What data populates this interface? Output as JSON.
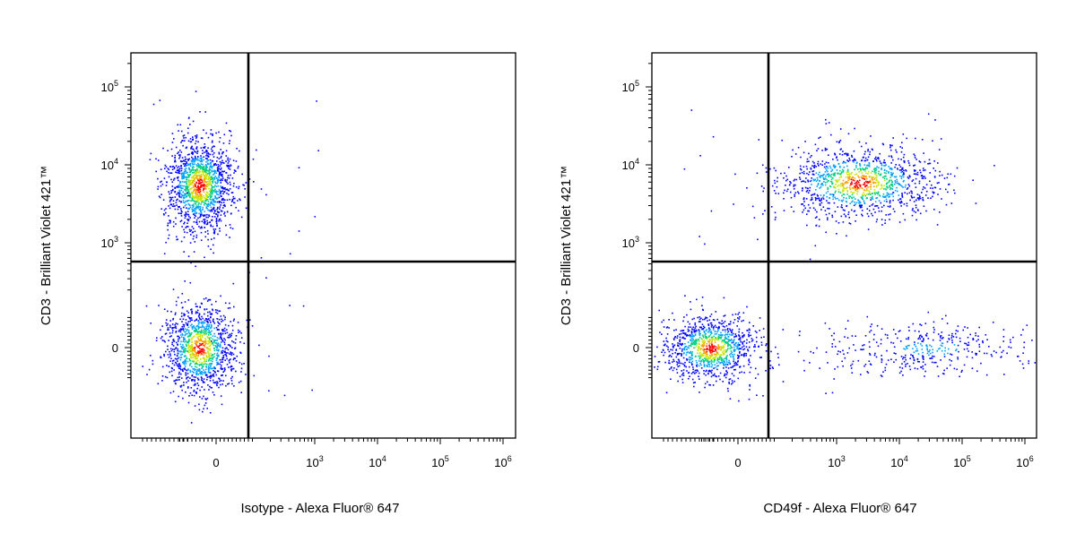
{
  "chart_data": [
    {
      "type": "scatter",
      "style": "density-colored flow cytometry dot plot",
      "xlabel": "Isotype - Alexa Fluor® 647",
      "ylabel": "CD3 - Brilliant Violet 421™",
      "x_scale": "biexponential",
      "y_scale": "biexponential",
      "xlim": [
        -200,
        1000000
      ],
      "ylim": [
        -200,
        250000
      ],
      "x_ticks": [
        {
          "value": 0,
          "base": "0",
          "exp": ""
        },
        {
          "value": 1000,
          "base": "10",
          "exp": "3"
        },
        {
          "value": 10000,
          "base": "10",
          "exp": "4"
        },
        {
          "value": 100000,
          "base": "10",
          "exp": "5"
        },
        {
          "value": 1000000,
          "base": "10",
          "exp": "6"
        }
      ],
      "y_ticks": [
        {
          "value": 0,
          "base": "0",
          "exp": ""
        },
        {
          "value": 1000,
          "base": "10",
          "exp": "3"
        },
        {
          "value": 10000,
          "base": "10",
          "exp": "4"
        },
        {
          "value": 100000,
          "base": "10",
          "exp": "5"
        }
      ],
      "quadrant_gate": {
        "x": 300,
        "y": 600
      },
      "populations": [
        {
          "x_center": -30,
          "y_center": 5500,
          "relative_size": 0.55
        },
        {
          "x_center": -30,
          "y_center": 0,
          "relative_size": 0.45
        }
      ],
      "density_colors": [
        "#0000ff",
        "#00a0ff",
        "#00d080",
        "#c8e600",
        "#ffa000",
        "#ff0000"
      ]
    },
    {
      "type": "scatter",
      "style": "density-colored flow cytometry dot plot",
      "xlabel": "CD49f - Alexa Fluor® 647",
      "ylabel": "CD3 - Brilliant Violet 421™",
      "x_scale": "biexponential",
      "y_scale": "biexponential",
      "xlim": [
        -200,
        1000000
      ],
      "ylim": [
        -200,
        250000
      ],
      "x_ticks": [
        {
          "value": 0,
          "base": "0",
          "exp": ""
        },
        {
          "value": 1000,
          "base": "10",
          "exp": "3"
        },
        {
          "value": 10000,
          "base": "10",
          "exp": "4"
        },
        {
          "value": 100000,
          "base": "10",
          "exp": "5"
        },
        {
          "value": 1000000,
          "base": "10",
          "exp": "6"
        }
      ],
      "y_ticks": [
        {
          "value": 0,
          "base": "0",
          "exp": ""
        },
        {
          "value": 1000,
          "base": "10",
          "exp": "3"
        },
        {
          "value": 10000,
          "base": "10",
          "exp": "4"
        },
        {
          "value": 100000,
          "base": "10",
          "exp": "5"
        }
      ],
      "quadrant_gate": {
        "x": 150,
        "y": 600
      },
      "populations": [
        {
          "x_center": 900,
          "y_center": 6000,
          "relative_size": 0.45
        },
        {
          "x_center": -60,
          "y_center": 0,
          "relative_size": 0.4
        },
        {
          "x_center": 800,
          "y_center": 0,
          "relative_size": 0.15
        }
      ],
      "density_colors": [
        "#0000ff",
        "#00a0ff",
        "#00d080",
        "#c8e600",
        "#ffa000",
        "#ff0000"
      ]
    }
  ]
}
